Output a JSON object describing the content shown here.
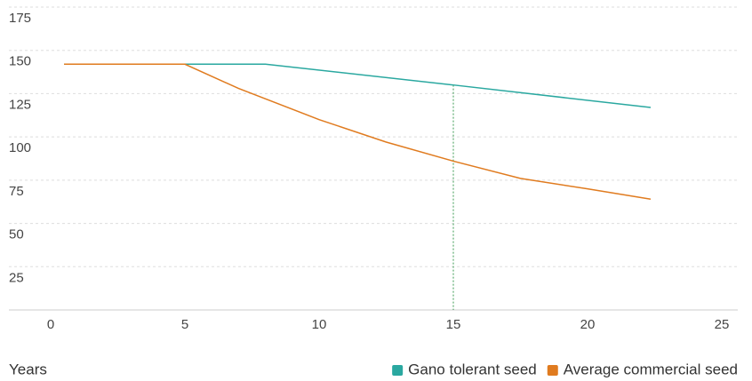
{
  "chart_data": {
    "type": "line",
    "x_label": "Years",
    "series": [
      {
        "name": "Gano tolerant seed",
        "color": "#2aa8a0",
        "x": [
          0.5,
          5,
          8,
          15,
          22.35
        ],
        "values": [
          142,
          142,
          142,
          130,
          117
        ]
      },
      {
        "name": "Average commercial seed",
        "color": "#e07b1f",
        "x": [
          0.5,
          5,
          7,
          10,
          12.5,
          15,
          17.5,
          20,
          22.35
        ],
        "values": [
          142,
          142,
          128,
          110,
          97,
          86,
          76,
          70,
          64
        ]
      }
    ],
    "xlim": [
      0,
      25
    ],
    "xticks": [
      0,
      5,
      10,
      15,
      20,
      25
    ],
    "ylim": [
      0,
      175
    ],
    "yticks": [
      25,
      50,
      75,
      100,
      125,
      150,
      175
    ],
    "grid": true,
    "highlight_x": 15,
    "legend": "bottom-right"
  }
}
